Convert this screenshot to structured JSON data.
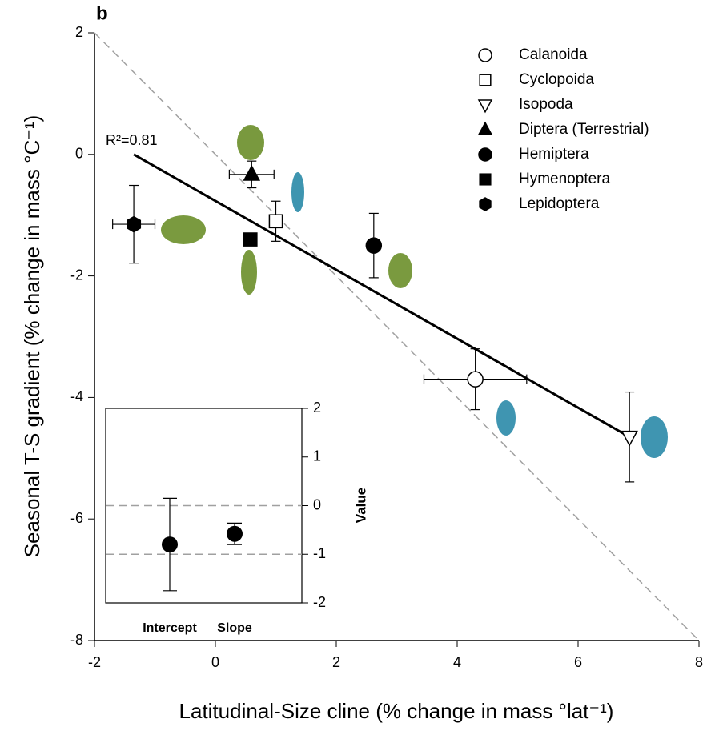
{
  "chart_data": [
    {
      "type": "scatter",
      "panel_label": "b",
      "x_label": "Latitudinal-Size cline (% change in mass °lat⁻¹)",
      "y_label": "Seasonal T-S gradient (% change in mass °C⁻¹)",
      "annotation": "R²=0.81",
      "xlim": [
        -2,
        8
      ],
      "xticks": [
        -2,
        0,
        2,
        4,
        6,
        8
      ],
      "ylim": [
        -8,
        2
      ],
      "yticks": [
        -8,
        -6,
        -4,
        -2,
        0,
        2
      ],
      "fit_line": {
        "x": [
          -1.35,
          6.85
        ],
        "y": [
          0,
          -4.65
        ],
        "color": "#000000"
      },
      "reference_line": {
        "x": [
          -2,
          8
        ],
        "y": [
          2,
          -8
        ],
        "color": "#a0a0a0"
      },
      "legend": "upper right",
      "series": [
        {
          "name": "Calanoida",
          "marker": "circle",
          "filled": false,
          "color": "#000000",
          "x": [
            4.3
          ],
          "values": [
            -3.7
          ],
          "x_error": [
            0.85
          ],
          "y_error": [
            0.5
          ]
        },
        {
          "name": "Cyclopoida",
          "marker": "square",
          "filled": false,
          "color": "#000000",
          "x": [
            1.0
          ],
          "values": [
            -1.1
          ],
          "x_error": [
            null
          ],
          "y_error": [
            0.33
          ]
        },
        {
          "name": "Isopoda",
          "marker": "triangle-down",
          "filled": false,
          "color": "#000000",
          "x": [
            6.85
          ],
          "values": [
            -4.65
          ],
          "x_error": [
            null
          ],
          "y_error": [
            0.74
          ]
        },
        {
          "name": "Diptera (Terrestrial)",
          "marker": "triangle",
          "filled": true,
          "color": "#000000",
          "x": [
            0.6
          ],
          "values": [
            -0.33
          ],
          "x_error": [
            0.37
          ],
          "y_error": [
            0.22
          ]
        },
        {
          "name": "Hemiptera",
          "marker": "circle",
          "filled": true,
          "color": "#000000",
          "x": [
            2.62
          ],
          "values": [
            -1.5
          ],
          "x_error": [
            null
          ],
          "y_error": [
            0.53
          ]
        },
        {
          "name": "Hymenoptera",
          "marker": "square",
          "filled": true,
          "color": "#000000",
          "x": [
            0.58
          ],
          "values": [
            -1.4
          ],
          "x_error": [
            null
          ],
          "y_error": [
            null
          ]
        },
        {
          "name": "Lepidoptera",
          "marker": "hexagon",
          "filled": true,
          "color": "#000000",
          "x": [
            -1.35
          ],
          "values": [
            -1.15
          ],
          "x_error": [
            0.35
          ],
          "y_error": [
            0.64
          ]
        }
      ]
    },
    {
      "type": "dot",
      "y_label": "Value",
      "categories": [
        "Intercept",
        "Slope"
      ],
      "values": [
        -0.8,
        -0.58
      ],
      "y_error": [
        0.95,
        0.22
      ],
      "ylim": [
        -2,
        2
      ],
      "yticks": [
        -2,
        -1,
        0,
        1,
        2
      ],
      "reference_lines": [
        0,
        -1
      ],
      "color": "#000000"
    }
  ]
}
